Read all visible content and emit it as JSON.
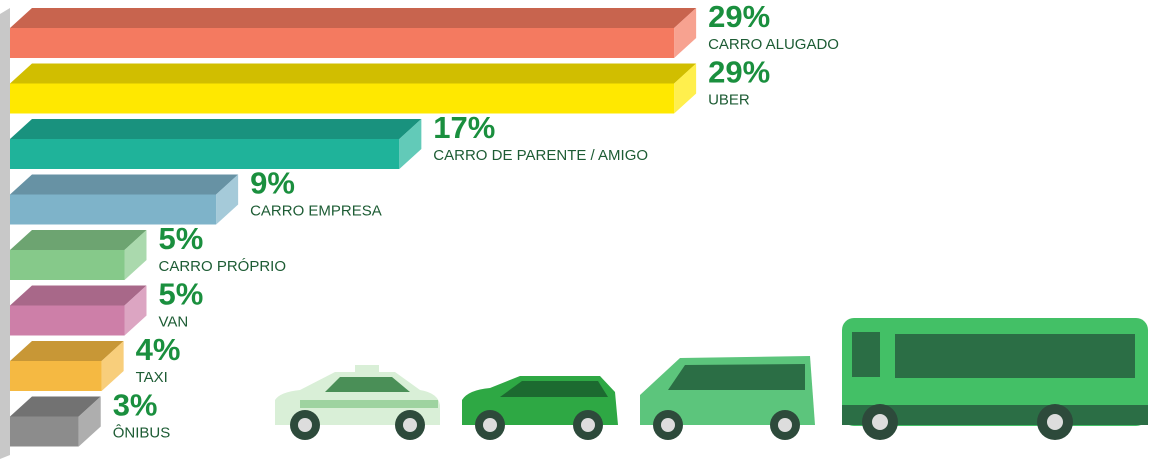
{
  "chart_data": {
    "type": "bar3d",
    "categories": [
      "CARRO ALUGADO",
      "UBER",
      "CARRO DE PARENTE / AMIGO",
      "CARRO EMPRESA",
      "CARRO PRÓPRIO",
      "VAN",
      "TAXI",
      "ÔNIBUS"
    ],
    "values": [
      29,
      29,
      17,
      9,
      5,
      5,
      4,
      3
    ],
    "value_labels": [
      "29%",
      "29%",
      "17%",
      "9%",
      "5%",
      "5%",
      "4%",
      "3%"
    ],
    "colors": [
      "#f47a60",
      "#ffe800",
      "#1fb39a",
      "#7eb3c9",
      "#86c98a",
      "#cd7fa8",
      "#f5b942",
      "#8c8c8c"
    ]
  }
}
